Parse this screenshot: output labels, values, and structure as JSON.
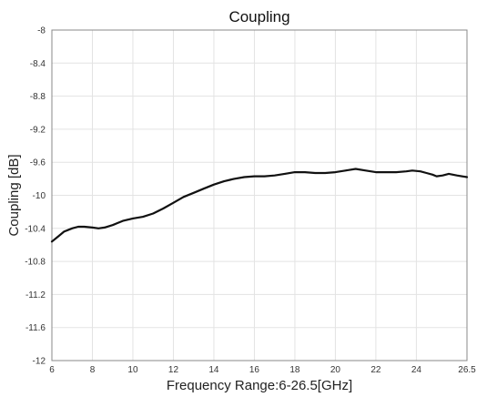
{
  "chart_data": {
    "type": "line",
    "title": "Coupling",
    "xlabel": "Frequency Range:6-26.5[GHz]",
    "ylabel": "Coupling [dB]",
    "xlim": [
      6,
      26.5
    ],
    "ylim": [
      -12,
      -8
    ],
    "xticks": [
      6,
      8,
      10,
      12,
      14,
      16,
      18,
      20,
      22,
      24,
      26.5
    ],
    "xtick_labels": [
      "6",
      "8",
      "10",
      "12",
      "14",
      "16",
      "18",
      "20",
      "22",
      "24",
      "26.5"
    ],
    "yticks": [
      -8,
      -8.4,
      -8.8,
      -9.2,
      -9.6,
      -10,
      -10.4,
      -10.8,
      -11.2,
      -11.6,
      -12
    ],
    "ytick_labels": [
      "-8",
      "-8.4",
      "-8.8",
      "-9.2",
      "-9.6",
      "-10",
      "-10.4",
      "-10.8",
      "-11.2",
      "-11.6",
      "-12"
    ],
    "grid": true,
    "series": [
      {
        "color": "#111111",
        "x": [
          6.0,
          6.3,
          6.6,
          7.0,
          7.3,
          7.6,
          8.0,
          8.3,
          8.6,
          9.0,
          9.5,
          10.0,
          10.5,
          11.0,
          11.5,
          12.0,
          12.5,
          13.0,
          13.5,
          14.0,
          14.5,
          15.0,
          15.5,
          16.0,
          16.5,
          17.0,
          17.5,
          18.0,
          18.5,
          19.0,
          19.5,
          20.0,
          20.5,
          21.0,
          21.5,
          22.0,
          22.5,
          23.0,
          23.5,
          23.8,
          24.2,
          24.5,
          24.8,
          25.0,
          25.3,
          25.6,
          26.0,
          26.5
        ],
        "y": [
          -10.56,
          -10.5,
          -10.44,
          -10.4,
          -10.38,
          -10.38,
          -10.39,
          -10.4,
          -10.39,
          -10.36,
          -10.31,
          -10.28,
          -10.26,
          -10.22,
          -10.16,
          -10.09,
          -10.02,
          -9.97,
          -9.92,
          -9.87,
          -9.83,
          -9.8,
          -9.78,
          -9.77,
          -9.77,
          -9.76,
          -9.74,
          -9.72,
          -9.72,
          -9.73,
          -9.73,
          -9.72,
          -9.7,
          -9.68,
          -9.7,
          -9.72,
          -9.72,
          -9.72,
          -9.71,
          -9.7,
          -9.71,
          -9.73,
          -9.75,
          -9.77,
          -9.76,
          -9.74,
          -9.76,
          -9.78
        ]
      }
    ]
  }
}
